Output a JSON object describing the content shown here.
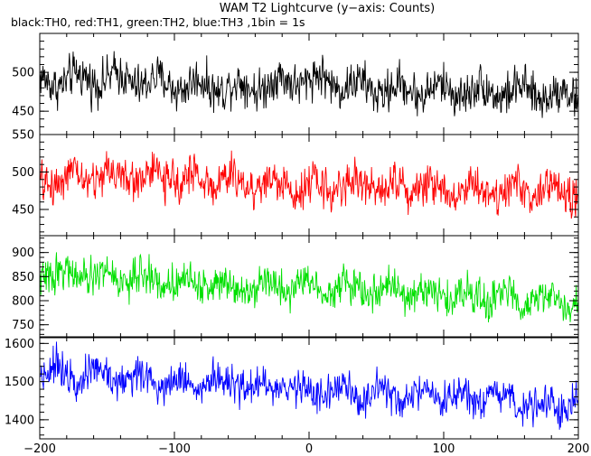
{
  "chart_data": {
    "type": "line",
    "title": "WAM T2 Lightcurve (y−axis: Counts)",
    "subtitle": "black:TH0, red:TH1, green:TH2, blue:TH3 ,1bin = 1s",
    "xlabel": "",
    "ylabel": "",
    "xlim": [
      -200,
      200
    ],
    "x_ticks": [
      -200,
      -100,
      0,
      100,
      200
    ],
    "x_tick_labels": [
      "−200",
      "−100",
      "0",
      "100",
      "200"
    ],
    "grid": false,
    "panels": [
      {
        "name": "TH0",
        "color": "#000000",
        "ylim": [
          420,
          550
        ],
        "y_ticks": [
          450,
          500
        ],
        "trend": [
          [
            -200,
            488
          ],
          [
            -150,
            493
          ],
          [
            -100,
            484
          ],
          [
            -50,
            481
          ],
          [
            0,
            492
          ],
          [
            50,
            478
          ],
          [
            100,
            477
          ],
          [
            150,
            475
          ],
          [
            200,
            470
          ]
        ],
        "noise_amplitude": 32
      },
      {
        "name": "TH1",
        "color": "#ff0000",
        "ylim": [
          415,
          550
        ],
        "y_ticks": [
          450,
          500,
          550
        ],
        "trend": [
          [
            -200,
            488
          ],
          [
            -150,
            496
          ],
          [
            -100,
            492
          ],
          [
            -50,
            486
          ],
          [
            0,
            480
          ],
          [
            50,
            484
          ],
          [
            100,
            478
          ],
          [
            150,
            476
          ],
          [
            200,
            472
          ]
        ],
        "noise_amplitude": 32
      },
      {
        "name": "TH2",
        "color": "#00e000",
        "ylim": [
          725,
          935
        ],
        "y_ticks": [
          750,
          800,
          850,
          900
        ],
        "trend": [
          [
            -200,
            858
          ],
          [
            -150,
            850
          ],
          [
            -100,
            840
          ],
          [
            -50,
            832
          ],
          [
            0,
            832
          ],
          [
            50,
            822
          ],
          [
            100,
            812
          ],
          [
            150,
            806
          ],
          [
            200,
            796
          ]
        ],
        "noise_amplitude": 45
      },
      {
        "name": "TH3",
        "color": "#0000ff",
        "ylim": [
          1350,
          1615
        ],
        "y_ticks": [
          1400,
          1500,
          1600
        ],
        "trend": [
          [
            -200,
            1532
          ],
          [
            -150,
            1516
          ],
          [
            -100,
            1500
          ],
          [
            -50,
            1490
          ],
          [
            0,
            1478
          ],
          [
            50,
            1462
          ],
          [
            100,
            1456
          ],
          [
            150,
            1448
          ],
          [
            200,
            1438
          ]
        ],
        "noise_amplitude": 58
      }
    ]
  }
}
